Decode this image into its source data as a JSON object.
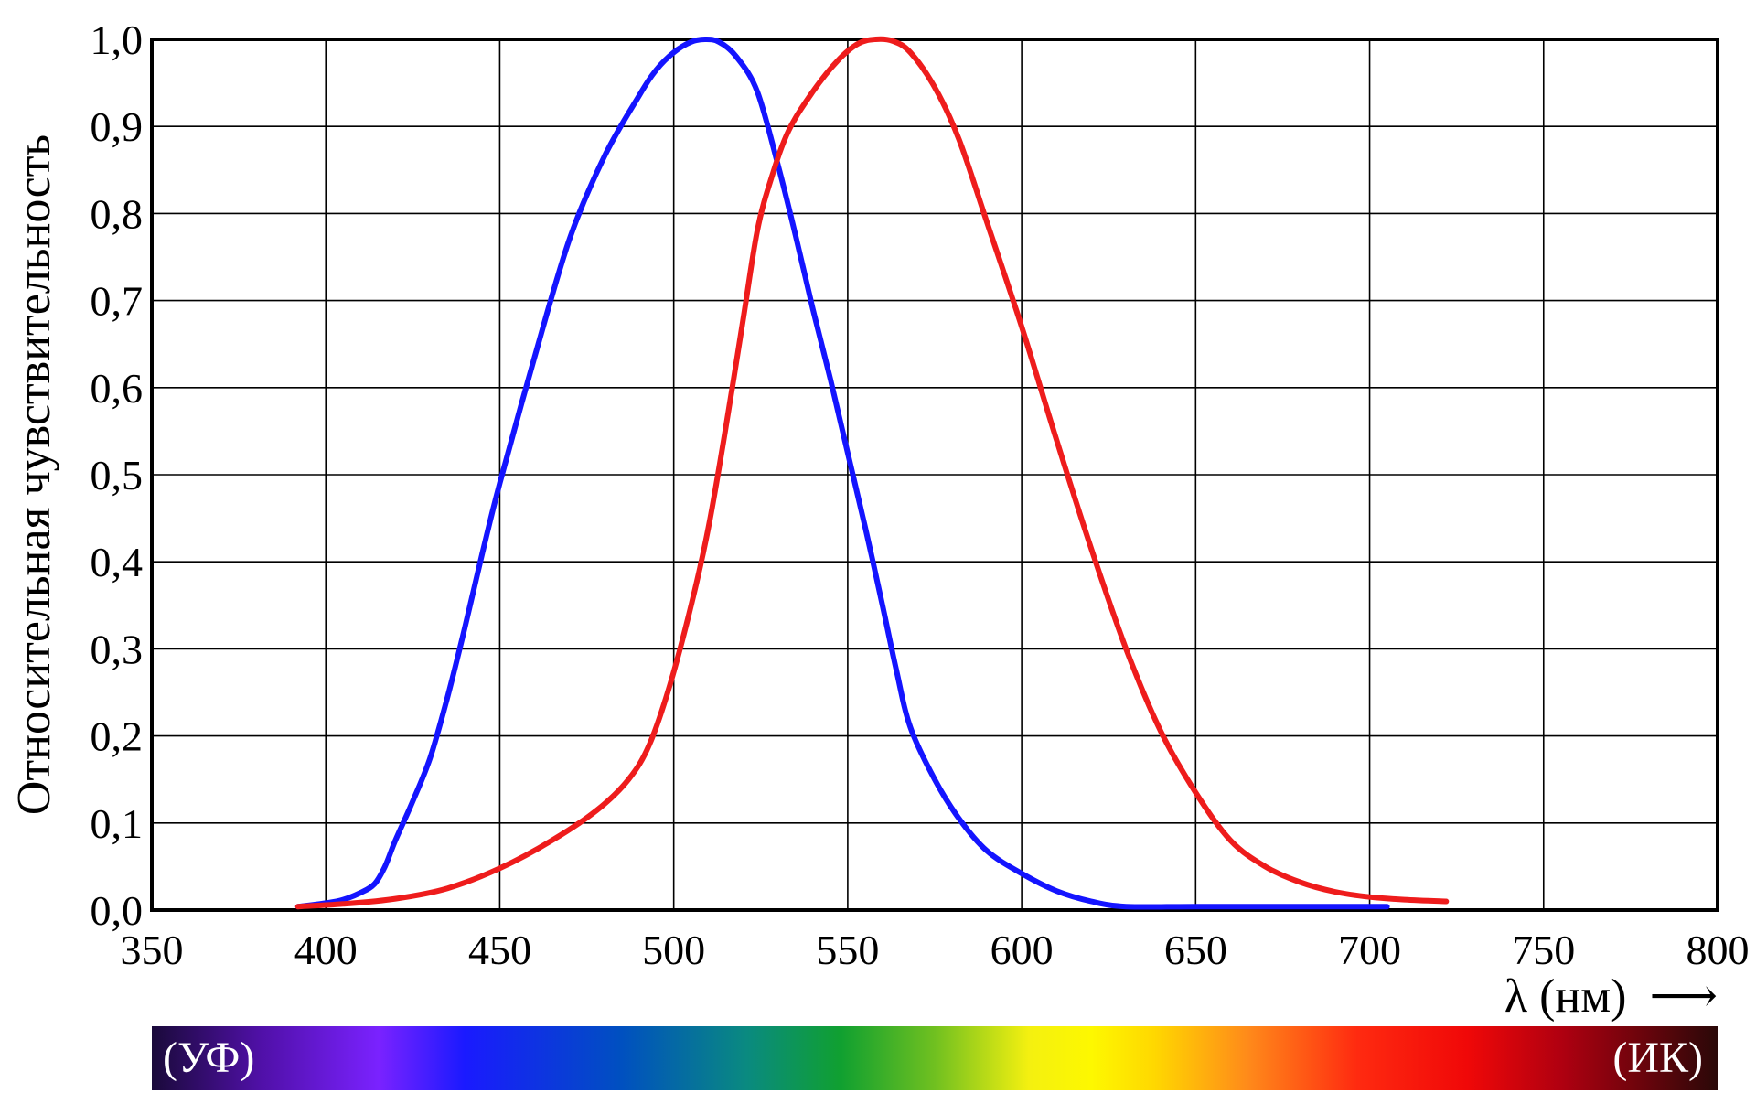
{
  "chart_data": {
    "type": "line",
    "title": "",
    "xlabel": "λ (нм)",
    "xlabel_arrow": "⟶",
    "ylabel": "Относительная чувствительность",
    "xlim": [
      350,
      800
    ],
    "ylim": [
      0,
      1
    ],
    "x_ticks": [
      "350",
      "400",
      "450",
      "500",
      "550",
      "600",
      "650",
      "700",
      "750",
      "800"
    ],
    "y_ticks": [
      "0,0",
      "0,1",
      "0,2",
      "0,3",
      "0,4",
      "0,5",
      "0,6",
      "0,7",
      "0,8",
      "0,9",
      "1,0"
    ],
    "grid": true,
    "legend": "none",
    "series": [
      {
        "color": "#1414ff",
        "points": [
          [
            392,
            0.004
          ],
          [
            400,
            0.008
          ],
          [
            405,
            0.012
          ],
          [
            410,
            0.02
          ],
          [
            414,
            0.03
          ],
          [
            417,
            0.05
          ],
          [
            420,
            0.08
          ],
          [
            425,
            0.125
          ],
          [
            430,
            0.175
          ],
          [
            435,
            0.245
          ],
          [
            440,
            0.325
          ],
          [
            445,
            0.41
          ],
          [
            450,
            0.49
          ],
          [
            460,
            0.635
          ],
          [
            470,
            0.77
          ],
          [
            480,
            0.865
          ],
          [
            490,
            0.935
          ],
          [
            495,
            0.965
          ],
          [
            500,
            0.985
          ],
          [
            505,
            0.997
          ],
          [
            509,
            1.0
          ],
          [
            513,
            0.997
          ],
          [
            518,
            0.98
          ],
          [
            524,
            0.94
          ],
          [
            530,
            0.855
          ],
          [
            535,
            0.775
          ],
          [
            540,
            0.69
          ],
          [
            545,
            0.61
          ],
          [
            550,
            0.525
          ],
          [
            555,
            0.44
          ],
          [
            560,
            0.35
          ],
          [
            564,
            0.275
          ],
          [
            568,
            0.21
          ],
          [
            575,
            0.15
          ],
          [
            582,
            0.105
          ],
          [
            590,
            0.068
          ],
          [
            600,
            0.042
          ],
          [
            610,
            0.022
          ],
          [
            620,
            0.01
          ],
          [
            630,
            0.004
          ],
          [
            650,
            0.004
          ],
          [
            680,
            0.004
          ],
          [
            705,
            0.004
          ]
        ]
      },
      {
        "color": "#ee1c1c",
        "points": [
          [
            392,
            0.004
          ],
          [
            405,
            0.007
          ],
          [
            420,
            0.013
          ],
          [
            435,
            0.025
          ],
          [
            450,
            0.048
          ],
          [
            465,
            0.08
          ],
          [
            478,
            0.115
          ],
          [
            487,
            0.15
          ],
          [
            493,
            0.19
          ],
          [
            499,
            0.26
          ],
          [
            505,
            0.35
          ],
          [
            510,
            0.44
          ],
          [
            515,
            0.555
          ],
          [
            520,
            0.68
          ],
          [
            524,
            0.78
          ],
          [
            528,
            0.84
          ],
          [
            533,
            0.895
          ],
          [
            540,
            0.94
          ],
          [
            547,
            0.975
          ],
          [
            553,
            0.995
          ],
          [
            558,
            1.0
          ],
          [
            563,
            0.998
          ],
          [
            568,
            0.985
          ],
          [
            575,
            0.945
          ],
          [
            582,
            0.885
          ],
          [
            590,
            0.79
          ],
          [
            600,
            0.67
          ],
          [
            610,
            0.54
          ],
          [
            620,
            0.415
          ],
          [
            630,
            0.3
          ],
          [
            640,
            0.205
          ],
          [
            650,
            0.135
          ],
          [
            660,
            0.08
          ],
          [
            670,
            0.05
          ],
          [
            680,
            0.032
          ],
          [
            690,
            0.021
          ],
          [
            700,
            0.015
          ],
          [
            710,
            0.012
          ],
          [
            722,
            0.01
          ]
        ]
      }
    ],
    "spectrum_bar": {
      "left_label": "(УФ)",
      "right_label": "(ИК)",
      "stops": [
        {
          "offset": 0.0,
          "color": "#1a0a3a"
        },
        {
          "offset": 0.07,
          "color": "#5010a8"
        },
        {
          "offset": 0.145,
          "color": "#7a22ff"
        },
        {
          "offset": 0.2,
          "color": "#1a1aff"
        },
        {
          "offset": 0.3,
          "color": "#0050c0"
        },
        {
          "offset": 0.38,
          "color": "#0a8a80"
        },
        {
          "offset": 0.44,
          "color": "#10a030"
        },
        {
          "offset": 0.5,
          "color": "#70c020"
        },
        {
          "offset": 0.56,
          "color": "#f4f010"
        },
        {
          "offset": 0.6,
          "color": "#fdf800"
        },
        {
          "offset": 0.64,
          "color": "#ffd800"
        },
        {
          "offset": 0.7,
          "color": "#ff8a1a"
        },
        {
          "offset": 0.77,
          "color": "#ff2a10"
        },
        {
          "offset": 0.84,
          "color": "#f00808"
        },
        {
          "offset": 0.9,
          "color": "#b00010"
        },
        {
          "offset": 1.0,
          "color": "#2a0808"
        }
      ]
    }
  }
}
